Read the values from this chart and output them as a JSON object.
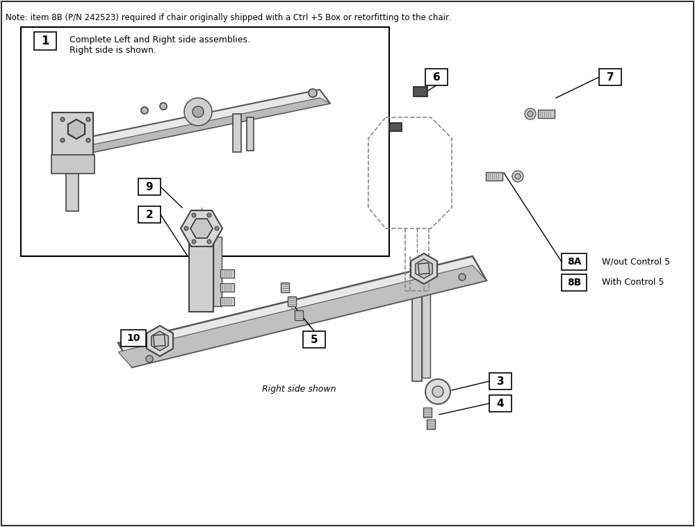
{
  "bg_color": "#ffffff",
  "note_text": "Note: item 8B (P/N 242523) required if chair originally shipped with a Ctrl +5 Box or retorfitting to the chair.",
  "label1_text": "1",
  "label1_desc": "Complete Left and Right side assemblies.\nRight side is shown.",
  "label2_text": "2",
  "label3_text": "3",
  "label4_text": "4",
  "label5_text": "5",
  "label6_text": "6",
  "label7_text": "7",
  "label8a_text": "8A",
  "label8b_text": "8B",
  "label9_text": "9",
  "label10_text": "10",
  "label8a_desc": "W/out Control 5",
  "label8b_desc": "With Control 5",
  "caption": "Right side shown",
  "line_color": "#000000",
  "box_color": "#000000",
  "text_color": "#000000"
}
